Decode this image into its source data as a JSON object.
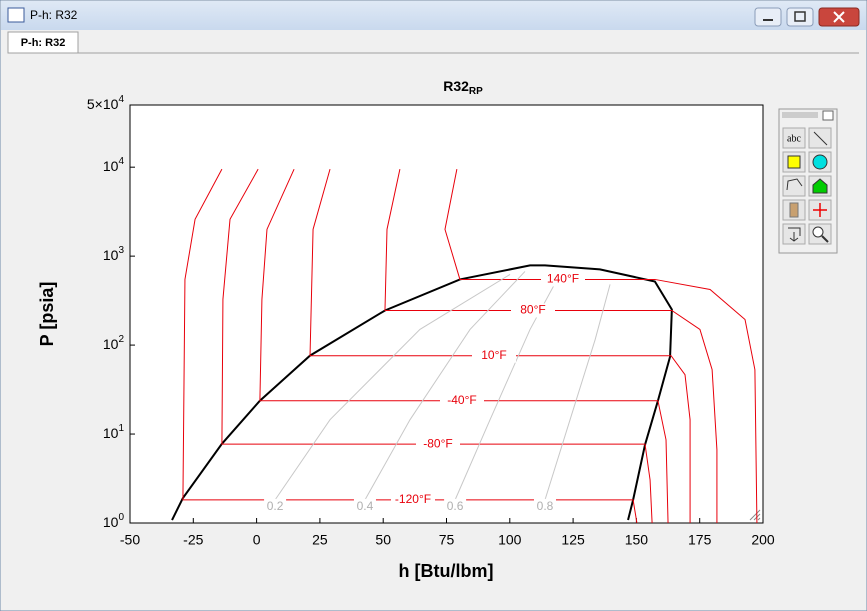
{
  "window": {
    "title": "P-h: R32",
    "tab": "P-h: R32"
  },
  "toolbar": {
    "text_tool": "abc"
  },
  "chart_data": {
    "type": "line",
    "title": "R32",
    "title_subscript": "RP",
    "x_label": "h [Btu/lbm]",
    "y_label": "P [psia]",
    "xlim": [
      -50,
      200
    ],
    "ylim": [
      1,
      50000
    ],
    "ylog": true,
    "grid": false,
    "xticks": [
      -50,
      -25,
      0,
      25,
      50,
      75,
      100,
      125,
      150,
      175,
      200
    ],
    "yticks": [
      {
        "value": 1,
        "label": "10",
        "exponent": "0"
      },
      {
        "value": 10,
        "label": "10",
        "exponent": "1"
      },
      {
        "value": 100,
        "label": "10",
        "exponent": "2"
      },
      {
        "value": 1000,
        "label": "10",
        "exponent": "3"
      },
      {
        "value": 10000,
        "label": "10",
        "exponent": "4"
      },
      {
        "value": 50000,
        "label": "5×10",
        "exponent": "4"
      }
    ],
    "series": [
      {
        "color": "#000000",
        "x": [
          -33.4,
          -29.1,
          -13.7,
          1.3,
          21.1,
          50.7,
          80.3,
          108.0,
          113.9,
          135.6,
          157.3,
          164.0,
          163.3,
          158.5,
          153.4,
          148.7,
          146.7
        ],
        "values": [
          1.08,
          1.91,
          7.77,
          23.7,
          76.2,
          245,
          547,
          787,
          787,
          709,
          519,
          251,
          74.2,
          23.7,
          7.57,
          1.82,
          1.08
        ]
      },
      {
        "name": "-120°F",
        "color": "#e8000b",
        "x": [
          -13.7,
          -24.3,
          -28.3,
          -29.1,
          148.7,
          150.2
        ],
        "values": [
          9500,
          2594,
          547,
          1.82,
          1.82,
          1
        ]
      },
      {
        "name": "-80°F",
        "color": "#e8000b",
        "x": [
          0.6,
          -10.5,
          -13.3,
          -13.7,
          153.4,
          155.4,
          156.2
        ],
        "values": [
          9500,
          2594,
          326,
          7.7,
          7.7,
          3.05,
          1
        ]
      },
      {
        "name": "-40°F",
        "color": "#e8000b",
        "x": [
          14.8,
          4.1,
          2.1,
          1.3,
          158.5,
          161.7,
          162.5
        ],
        "values": [
          9500,
          2000,
          326,
          23.7,
          23.7,
          8.61,
          1
        ]
      },
      {
        "name": "10°F",
        "color": "#e8000b",
        "x": [
          29.0,
          22.3,
          21.1,
          163.7,
          169.2,
          171.2,
          171.2
        ],
        "values": [
          9500,
          2000,
          76,
          76,
          46.5,
          14.5,
          1
        ]
      },
      {
        "name": "80°F",
        "color": "#e8000b",
        "x": [
          56.6,
          51.5,
          50.7,
          164.0,
          175.1,
          179.9,
          181.8,
          181.8
        ],
        "values": [
          9500,
          2000,
          245,
          245,
          150,
          53,
          6.65,
          1
        ]
      },
      {
        "name": "140°F",
        "color": "#e8000b",
        "x": [
          79.1,
          74.4,
          80.3,
          157.3,
          179.1,
          192.9,
          196.8,
          197.6
        ],
        "values": [
          9500,
          2000,
          547,
          547,
          422,
          194,
          53,
          1
        ]
      },
      {
        "name": "0.2",
        "color": "#c8c8c8",
        "x": [
          7.3,
          29.0,
          64.5,
          100.1
        ],
        "values": [
          1.82,
          14.5,
          150,
          623
        ]
      },
      {
        "name": "0.4",
        "color": "#c8c8c8",
        "x": [
          42.8,
          60.6,
          84.3,
          106.0
        ],
        "values": [
          1.82,
          14.5,
          150,
          673
        ]
      },
      {
        "name": "0.6",
        "color": "#c8c8c8",
        "x": [
          78.4,
          92.2,
          108.0,
          119.8
        ],
        "values": [
          1.82,
          14.5,
          150,
          623
        ]
      },
      {
        "name": "0.8",
        "color": "#c8c8c8",
        "x": [
          113.9,
          123.8,
          133.7,
          139.6
        ],
        "values": [
          1.82,
          14.5,
          115,
          481
        ]
      }
    ]
  }
}
